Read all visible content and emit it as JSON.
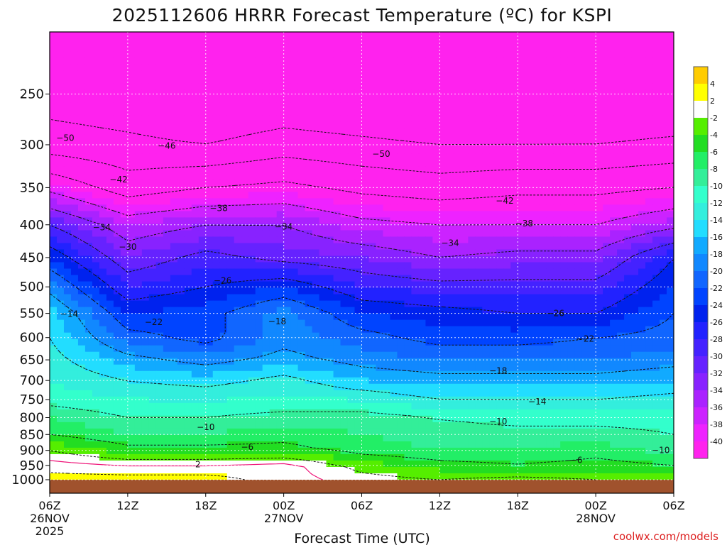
{
  "chart_data": {
    "type": "heatmap",
    "title": "2025112606 HRRR Forecast Temperature (ºC) for KSPI",
    "xlabel": "Forecast Time (UTC)",
    "ylabel": "",
    "credit": "coolwx.com/models",
    "y_axis": {
      "scale": "log-pressure",
      "ylim": [
        1000,
        200
      ],
      "ticks": [
        250,
        300,
        350,
        400,
        450,
        500,
        550,
        600,
        650,
        700,
        750,
        800,
        850,
        900,
        950,
        1000
      ]
    },
    "x_axis": {
      "xlim_hours": [
        0,
        48
      ],
      "ticks": [
        {
          "h": 0,
          "label": "06Z",
          "sub1": "26NOV",
          "sub2": "2025"
        },
        {
          "h": 6,
          "label": "12Z",
          "sub1": "",
          "sub2": ""
        },
        {
          "h": 12,
          "label": "18Z",
          "sub1": "",
          "sub2": ""
        },
        {
          "h": 18,
          "label": "00Z",
          "sub1": "27NOV",
          "sub2": ""
        },
        {
          "h": 24,
          "label": "06Z",
          "sub1": "",
          "sub2": ""
        },
        {
          "h": 30,
          "label": "12Z",
          "sub1": "",
          "sub2": ""
        },
        {
          "h": 36,
          "label": "18Z",
          "sub1": "",
          "sub2": ""
        },
        {
          "h": 42,
          "label": "00Z",
          "sub1": "28NOV",
          "sub2": ""
        },
        {
          "h": 48,
          "label": "06Z",
          "sub1": "",
          "sub2": ""
        }
      ]
    },
    "grid": true,
    "colorbar": {
      "placement": "right",
      "labels": [
        "4",
        "2",
        "-2",
        "-4",
        "-6",
        "-8",
        "-10",
        "-12",
        "-14",
        "-16",
        "-18",
        "-20",
        "-22",
        "-24",
        "-26",
        "-28",
        "-30",
        "-32",
        "-34",
        "-36",
        "-38",
        "-40"
      ],
      "bins": [
        {
          "from": 4,
          "to": 6,
          "color": "#ffcc00"
        },
        {
          "from": 2,
          "to": 4,
          "color": "#ffff00"
        },
        {
          "from": -2,
          "to": 2,
          "color": "#ffffff"
        },
        {
          "from": -4,
          "to": -2,
          "color": "#55ee00"
        },
        {
          "from": -6,
          "to": -4,
          "color": "#22dd22"
        },
        {
          "from": -8,
          "to": -6,
          "color": "#22ee66"
        },
        {
          "from": -10,
          "to": -8,
          "color": "#33ee99"
        },
        {
          "from": -12,
          "to": -10,
          "color": "#33ffcc"
        },
        {
          "from": -14,
          "to": -12,
          "color": "#33eedd"
        },
        {
          "from": -16,
          "to": -14,
          "color": "#22ddff"
        },
        {
          "from": -18,
          "to": -16,
          "color": "#11aaff"
        },
        {
          "from": -20,
          "to": -18,
          "color": "#1188ff"
        },
        {
          "from": -22,
          "to": -20,
          "color": "#1166ff"
        },
        {
          "from": -24,
          "to": -22,
          "color": "#0044ff"
        },
        {
          "from": -26,
          "to": -24,
          "color": "#0022ee"
        },
        {
          "from": -28,
          "to": -26,
          "color": "#2222ff"
        },
        {
          "from": -30,
          "to": -28,
          "color": "#4422ff"
        },
        {
          "from": -32,
          "to": -30,
          "color": "#6622ff"
        },
        {
          "from": -34,
          "to": -32,
          "color": "#8822ff"
        },
        {
          "from": -36,
          "to": -34,
          "color": "#aa22ff"
        },
        {
          "from": -38,
          "to": -36,
          "color": "#cc22ff"
        },
        {
          "from": -40,
          "to": -38,
          "color": "#ee22ff"
        },
        {
          "from": -70,
          "to": -40,
          "color": "#ff22ee"
        }
      ]
    },
    "ground_color": "#a0522d",
    "isotherm_0_color": "#ee1177",
    "field": {
      "x": [
        0,
        6,
        12,
        18,
        24,
        30,
        36,
        42,
        48
      ],
      "levels": [
        1000,
        950,
        900,
        850,
        800,
        750,
        700,
        650,
        600,
        550,
        500,
        450,
        400,
        350,
        300,
        250,
        200
      ],
      "temperature_rows": [
        [
          3,
          3,
          3,
          1,
          -1,
          -2,
          -1,
          -2,
          -3
        ],
        [
          1,
          0,
          0,
          1,
          -3,
          -5,
          -6,
          -5,
          -6
        ],
        [
          -2,
          -5,
          -5,
          -5,
          -7,
          -8,
          -8,
          -7,
          -9
        ],
        [
          -6,
          -8,
          -8,
          -7,
          -8,
          -9,
          -9,
          -9,
          -10
        ],
        [
          -8,
          -10,
          -10,
          -9,
          -9,
          -10,
          -11,
          -11,
          -11
        ],
        [
          -11,
          -12,
          -12,
          -12,
          -12,
          -14,
          -14,
          -14,
          -13
        ],
        [
          -12,
          -14,
          -15,
          -13,
          -16,
          -17,
          -17,
          -17,
          -16
        ],
        [
          -13,
          -17,
          -19,
          -17,
          -19,
          -20,
          -20,
          -20,
          -19
        ],
        [
          -14,
          -21,
          -23,
          -19,
          -21,
          -23,
          -23,
          -22,
          -21
        ],
        [
          -15,
          -24,
          -23,
          -19,
          -24,
          -25,
          -26,
          -26,
          -22
        ],
        [
          -19,
          -28,
          -26,
          -24,
          -28,
          -29,
          -29,
          -29,
          -24
        ],
        [
          -24,
          -32,
          -29,
          -31,
          -32,
          -34,
          -33,
          -33,
          -26
        ],
        [
          -30,
          -36,
          -34,
          -34,
          -37,
          -38,
          -38,
          -38,
          -35
        ],
        [
          -39,
          -44,
          -42,
          -41,
          -43,
          -44,
          -43,
          -43,
          -42
        ],
        [
          -48,
          -49,
          -50,
          -48,
          -49,
          -50,
          -50,
          -50,
          -49
        ],
        [
          -52,
          -53,
          -55,
          -54,
          -55,
          -56,
          -56,
          -55,
          -55
        ],
        [
          -57,
          -58,
          -58,
          -57,
          -58,
          -59,
          -59,
          -58,
          -58
        ]
      ]
    },
    "contour_levels": [
      -50,
      -46,
      -42,
      -38,
      -34,
      -30,
      -26,
      -22,
      -18,
      -14,
      -10,
      -6,
      -2,
      2,
      6
    ],
    "contour_labels": [
      {
        "text": "−50",
        "h": 1.2,
        "p": 293
      },
      {
        "text": "−46",
        "h": 9.0,
        "p": 301
      },
      {
        "text": "−50",
        "h": 25.5,
        "p": 310
      },
      {
        "text": "−42",
        "h": 5.3,
        "p": 340
      },
      {
        "text": "−42",
        "h": 35.0,
        "p": 367
      },
      {
        "text": "−38",
        "h": 13.0,
        "p": 377
      },
      {
        "text": "−38",
        "h": 36.5,
        "p": 398
      },
      {
        "text": "−34",
        "h": 4.0,
        "p": 404
      },
      {
        "text": "−34",
        "h": 18.0,
        "p": 403
      },
      {
        "text": "−34",
        "h": 30.8,
        "p": 427
      },
      {
        "text": "−30",
        "h": 6.0,
        "p": 433
      },
      {
        "text": "−26",
        "h": 13.3,
        "p": 489
      },
      {
        "text": "−26",
        "h": 38.9,
        "p": 550
      },
      {
        "text": "−22",
        "h": 8.0,
        "p": 568
      },
      {
        "text": "−22",
        "h": 41.2,
        "p": 603
      },
      {
        "text": "−18",
        "h": 17.5,
        "p": 566
      },
      {
        "text": "−18",
        "h": 34.5,
        "p": 676
      },
      {
        "text": "−14",
        "h": 1.5,
        "p": 551
      },
      {
        "text": "−14",
        "h": 37.5,
        "p": 755
      },
      {
        "text": "−10",
        "h": 12.0,
        "p": 828
      },
      {
        "text": "−10",
        "h": 34.5,
        "p": 811
      },
      {
        "text": "−10",
        "h": 47.0,
        "p": 899
      },
      {
        "text": "−6",
        "h": 15.2,
        "p": 889
      },
      {
        "text": "−6",
        "h": 40.5,
        "p": 932
      },
      {
        "text": "2",
        "h": 11.4,
        "p": 947
      }
    ]
  }
}
